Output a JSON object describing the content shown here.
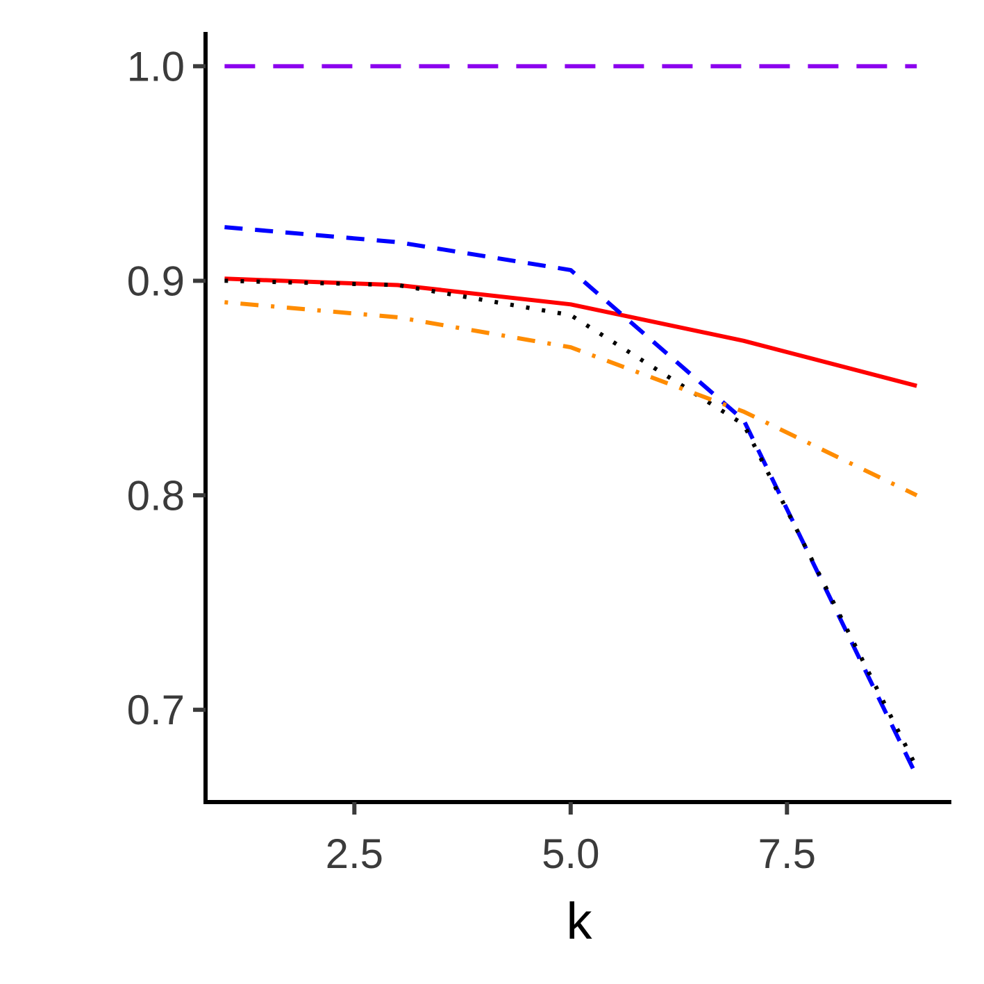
{
  "chart_data": {
    "type": "line",
    "title": "",
    "xlabel": "k",
    "ylabel": "",
    "xlim": [
      0.78,
      9.4
    ],
    "ylim": [
      0.657,
      1.016
    ],
    "x_ticks": [
      2.5,
      5.0,
      7.5
    ],
    "x_tick_labels": [
      "2.5",
      "5.0",
      "7.5"
    ],
    "y_ticks": [
      0.7,
      0.8,
      0.9,
      1.0
    ],
    "y_tick_labels": [
      "0.7",
      "0.8",
      "0.9",
      "1.0"
    ],
    "grid": false,
    "legend": "none",
    "x": [
      1,
      3,
      5,
      7,
      9
    ],
    "series": [
      {
        "color": "#8b00ee",
        "dash": "long-dash",
        "values": [
          1.0,
          1.0,
          1.0,
          1.0,
          1.0
        ]
      },
      {
        "color": "#ff0000",
        "dash": "solid",
        "values": [
          0.901,
          0.898,
          0.889,
          0.872,
          0.851
        ]
      },
      {
        "color": "#0000ff",
        "dash": "dashed",
        "values": [
          0.925,
          0.918,
          0.905,
          0.835,
          0.669
        ]
      },
      {
        "color": "#000000",
        "dash": "dotted",
        "values": [
          0.9,
          0.898,
          0.884,
          0.833,
          0.673
        ]
      },
      {
        "color": "#ff8c00",
        "dash": "dot-dash",
        "values": [
          0.89,
          0.883,
          0.869,
          0.839,
          0.8
        ]
      }
    ]
  }
}
